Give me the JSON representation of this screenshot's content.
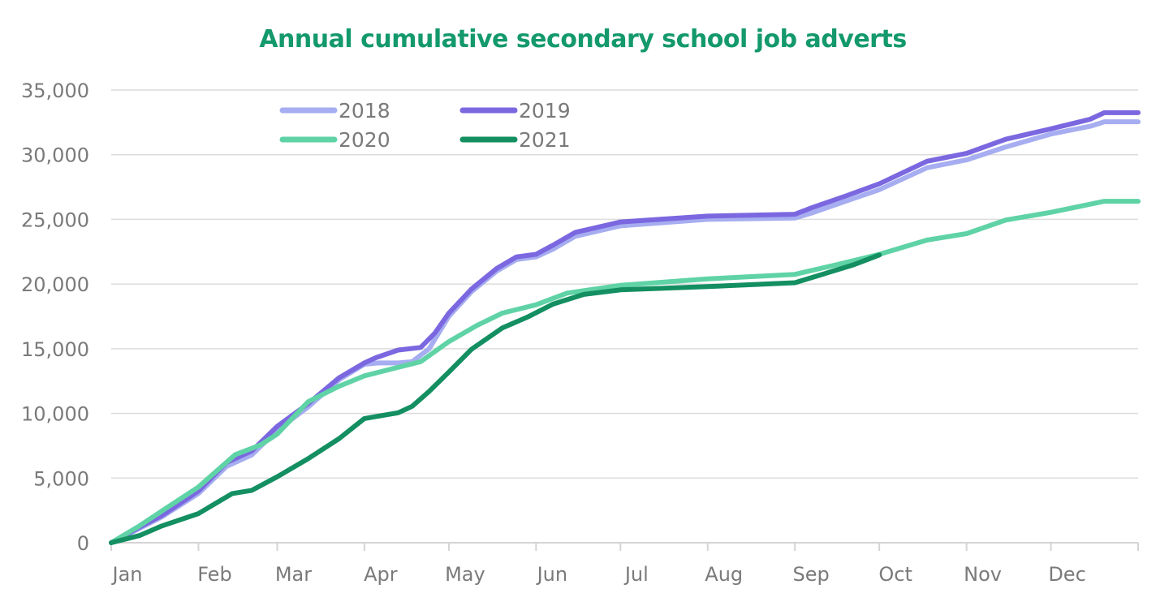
{
  "chart_data": {
    "type": "line",
    "title": "Annual cumulative secondary school job adverts",
    "xlabel": "",
    "ylabel": "",
    "x_unit": "day of year",
    "xlim": [
      0,
      365
    ],
    "ylim": [
      0,
      35000
    ],
    "grid": true,
    "legend_position": "top-left",
    "x_ticks": [
      {
        "label": "Jan",
        "day": 0
      },
      {
        "label": "Feb",
        "day": 31
      },
      {
        "label": "Mar",
        "day": 59
      },
      {
        "label": "Apr",
        "day": 90
      },
      {
        "label": "May",
        "day": 120
      },
      {
        "label": "Jun",
        "day": 151
      },
      {
        "label": "Jul",
        "day": 181
      },
      {
        "label": "Aug",
        "day": 212
      },
      {
        "label": "Sep",
        "day": 243
      },
      {
        "label": "Oct",
        "day": 273
      },
      {
        "label": "Nov",
        "day": 304
      },
      {
        "label": "Dec",
        "day": 334
      }
    ],
    "y_ticks": [
      {
        "label": "0",
        "value": 0
      },
      {
        "label": "5,000",
        "value": 5000
      },
      {
        "label": "10,000",
        "value": 10000
      },
      {
        "label": "15,000",
        "value": 15000
      },
      {
        "label": "20,000",
        "value": 20000
      },
      {
        "label": "25,000",
        "value": 25000
      },
      {
        "label": "30,000",
        "value": 30000
      },
      {
        "label": "35,000",
        "value": 35000
      }
    ],
    "series": [
      {
        "name": "2018",
        "color": "#a6adf0",
        "x": [
          0,
          10,
          18,
          31,
          41,
          50,
          59,
          70,
          81,
          90,
          95,
          102,
          107,
          113,
          120,
          128,
          137,
          144,
          151,
          157,
          165,
          181,
          212,
          243,
          249,
          261,
          273,
          290,
          304,
          318,
          334,
          348,
          353,
          365
        ],
        "y": [
          0,
          1100,
          2000,
          3800,
          5900,
          6800,
          8700,
          10500,
          12600,
          13800,
          13900,
          13900,
          14000,
          15000,
          17500,
          19400,
          21000,
          21900,
          22100,
          22700,
          23700,
          24500,
          25000,
          25100,
          25500,
          26400,
          27300,
          29000,
          29600,
          30600,
          31600,
          32200,
          32550,
          32550
        ]
      },
      {
        "name": "2019",
        "color": "#7b68e0",
        "x": [
          0,
          10,
          18,
          31,
          41,
          50,
          59,
          70,
          81,
          90,
          94,
          102,
          110,
          115,
          120,
          128,
          137,
          144,
          151,
          157,
          165,
          181,
          212,
          243,
          249,
          261,
          273,
          290,
          304,
          318,
          334,
          348,
          353,
          365
        ],
        "y": [
          0,
          1200,
          2100,
          4000,
          6200,
          7100,
          9000,
          10750,
          12750,
          13900,
          14300,
          14900,
          15100,
          16200,
          17750,
          19600,
          21200,
          22100,
          22300,
          23000,
          24000,
          24800,
          25250,
          25400,
          25900,
          26800,
          27750,
          29500,
          30100,
          31200,
          32000,
          32750,
          33250,
          33250
        ]
      },
      {
        "name": "2020",
        "color": "#5fd3a6",
        "x": [
          0,
          10,
          18,
          31,
          44,
          53,
          59,
          70,
          81,
          90,
          99,
          110,
          120,
          130,
          139,
          151,
          162,
          181,
          212,
          243,
          258,
          273,
          290,
          304,
          318,
          334,
          353,
          365
        ],
        "y": [
          0,
          1300,
          2450,
          4300,
          6800,
          7550,
          8400,
          10900,
          12100,
          12900,
          13400,
          14000,
          15550,
          16800,
          17750,
          18400,
          19300,
          19900,
          20400,
          20750,
          21500,
          22300,
          23400,
          23900,
          24950,
          25550,
          26400,
          26400
        ]
      },
      {
        "name": "2021",
        "color": "#138f62",
        "x": [
          0,
          10,
          18,
          31,
          43,
          50,
          59,
          70,
          81,
          90,
          102,
          107,
          113,
          120,
          128,
          139,
          148,
          157,
          168,
          181,
          212,
          243,
          255,
          264,
          273
        ],
        "y": [
          0,
          550,
          1300,
          2250,
          3800,
          4050,
          5100,
          6500,
          8050,
          9600,
          10050,
          10550,
          11700,
          13200,
          14950,
          16600,
          17450,
          18450,
          19200,
          19550,
          19800,
          20100,
          20900,
          21500,
          22250
        ]
      }
    ]
  }
}
